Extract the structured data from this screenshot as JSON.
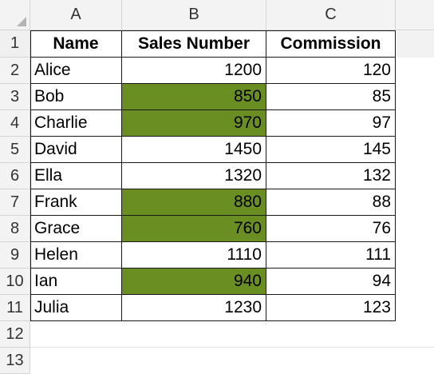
{
  "columns": [
    "A",
    "B",
    "C"
  ],
  "row_numbers": [
    "1",
    "2",
    "3",
    "4",
    "5",
    "6",
    "7",
    "8",
    "9",
    "10",
    "11",
    "12",
    "13"
  ],
  "headers": {
    "name": "Name",
    "sales": "Sales Number",
    "commission": "Commission"
  },
  "rows": [
    {
      "name": "Alice",
      "sales": "1200",
      "commission": "120",
      "highlight": false
    },
    {
      "name": "Bob",
      "sales": "850",
      "commission": "85",
      "highlight": true
    },
    {
      "name": "Charlie",
      "sales": "970",
      "commission": "97",
      "highlight": true
    },
    {
      "name": "David",
      "sales": "1450",
      "commission": "145",
      "highlight": false
    },
    {
      "name": "Ella",
      "sales": "1320",
      "commission": "132",
      "highlight": false
    },
    {
      "name": "Frank",
      "sales": "880",
      "commission": "88",
      "highlight": true
    },
    {
      "name": "Grace",
      "sales": "760",
      "commission": "76",
      "highlight": true
    },
    {
      "name": "Helen",
      "sales": "1110",
      "commission": "111",
      "highlight": false
    },
    {
      "name": "Ian",
      "sales": "940",
      "commission": "94",
      "highlight": true
    },
    {
      "name": "Julia",
      "sales": "1230",
      "commission": "123",
      "highlight": false
    }
  ],
  "colors": {
    "highlight_fill": "#6b8e23",
    "header_bg": "#f3f3f3",
    "grid_border": "#1a1a1a"
  }
}
